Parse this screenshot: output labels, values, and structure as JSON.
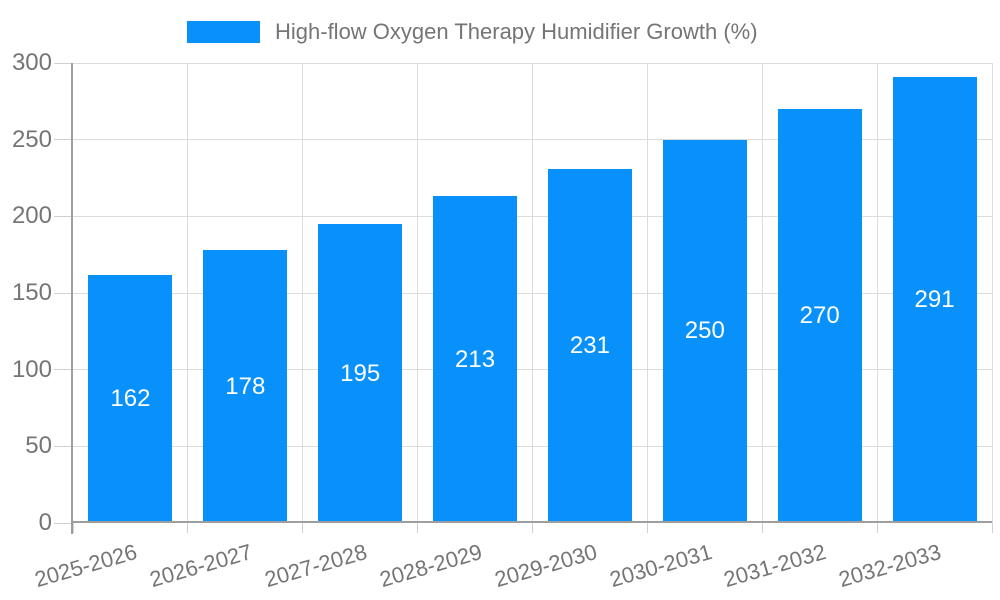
{
  "legend": {
    "label": "High-flow Oxygen Therapy Humidifier Growth (%)"
  },
  "chart_data": {
    "type": "bar",
    "title": "High-flow Oxygen Therapy Humidifier Growth (%)",
    "categories": [
      "2025-2026",
      "2026-2027",
      "2027-2028",
      "2028-2029",
      "2029-2030",
      "2030-2031",
      "2031-2032",
      "2032-2033"
    ],
    "values": [
      162,
      178,
      195,
      213,
      231,
      250,
      270,
      291
    ],
    "xlabel": "",
    "ylabel": "",
    "ylim": [
      0,
      300
    ],
    "ytick_step": 50,
    "yticks": [
      0,
      50,
      100,
      150,
      200,
      250,
      300
    ],
    "grid": true,
    "legend_position": "top",
    "value_labels": "inside-center",
    "colors": {
      "bar": "#0890fb",
      "axis_line": "#9e9e9e",
      "gridline": "#dcdcdc",
      "tick": "#d0d0d0",
      "axis_text": "#757575",
      "value_label": "#ffffff",
      "background": "#ffffff"
    }
  }
}
